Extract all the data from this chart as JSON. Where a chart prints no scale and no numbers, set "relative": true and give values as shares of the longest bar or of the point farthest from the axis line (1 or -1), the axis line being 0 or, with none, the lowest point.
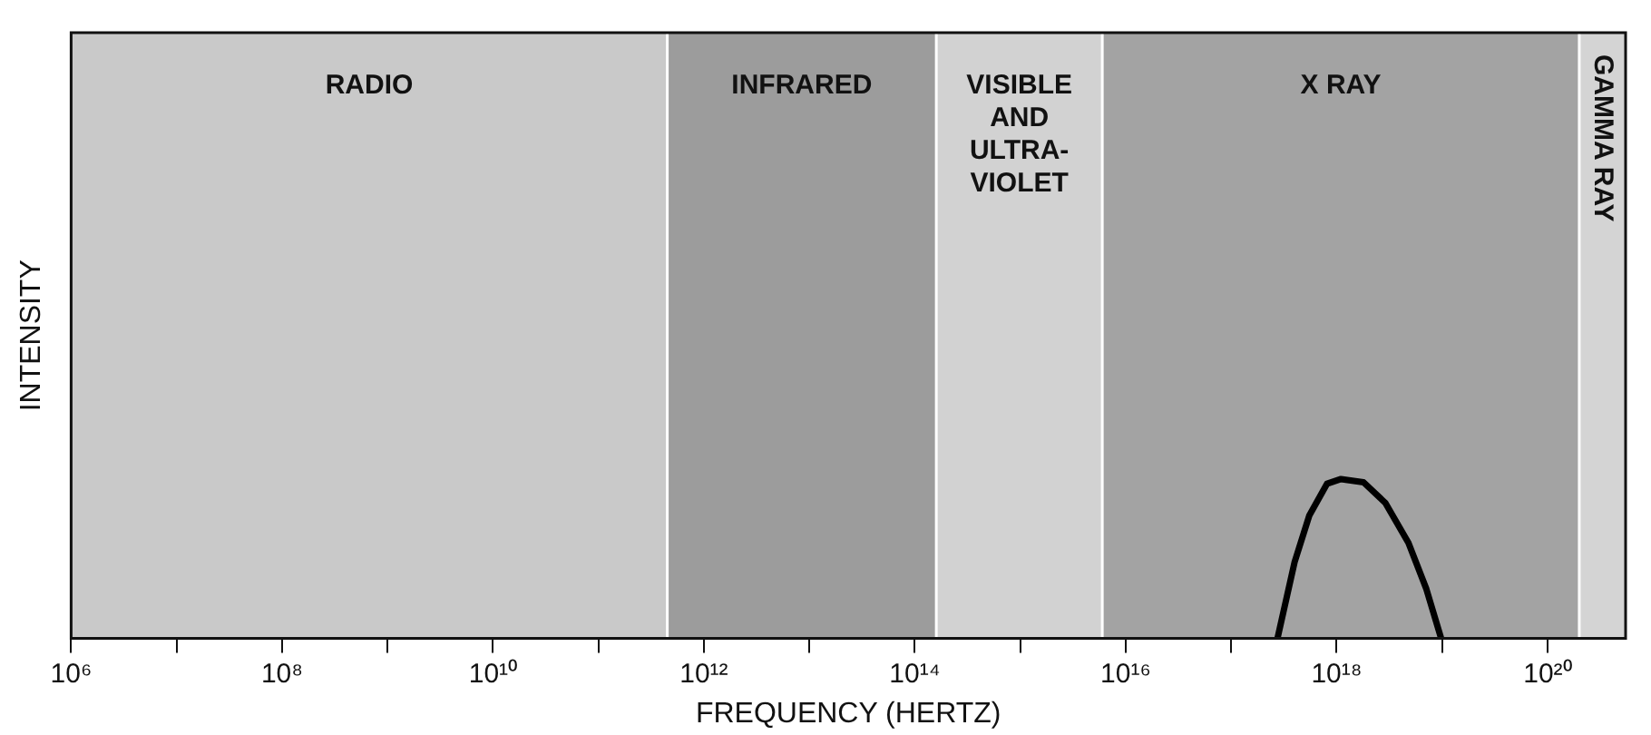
{
  "chart_data": {
    "type": "line",
    "xlabel": "FREQUENCY (HERTZ)",
    "ylabel": "INTENSITY",
    "relative": true,
    "log": "x",
    "legend": false,
    "marker": "none",
    "line_style": "solid",
    "xlim": [
      1000000.0,
      5.5e+20
    ],
    "xticks": [
      {
        "value": 1000000.0,
        "label": "10⁶"
      },
      {
        "value": 10000000.0,
        "label": null
      },
      {
        "value": 100000000.0,
        "label": "10⁸"
      },
      {
        "value": 1000000000.0,
        "label": null
      },
      {
        "value": 10000000000.0,
        "label": "10¹⁰"
      },
      {
        "value": 100000000000.0,
        "label": null
      },
      {
        "value": 1000000000000.0,
        "label": "10¹²"
      },
      {
        "value": 10000000000000.0,
        "label": null
      },
      {
        "value": 100000000000000.0,
        "label": "10¹⁴"
      },
      {
        "value": 1000000000000000.0,
        "label": null
      },
      {
        "value": 1e+16,
        "label": "10¹⁶"
      },
      {
        "value": 1e+17,
        "label": null
      },
      {
        "value": 1e+18,
        "label": "10¹⁸"
      },
      {
        "value": 1e+19,
        "label": null
      },
      {
        "value": 1e+20,
        "label": "10²⁰"
      }
    ],
    "x": [
      2.75e+17,
      4e+17,
      5.5e+17,
      8.1e+17,
      1.1e+18,
      1.8e+18,
      2.9e+18,
      4.8e+18,
      7.1e+18,
      9.8e+18
    ],
    "series": [
      {
        "color": "#000000",
        "values": [
          0,
          0.48,
          0.77,
          0.97,
          1,
          0.98,
          0.85,
          0.6,
          0.31,
          0
        ]
      }
    ],
    "bands": [
      {
        "axis": "x",
        "from": 1000000.0,
        "to": 450000000000.0,
        "label": "RADIO",
        "color": "#c9c9c9"
      },
      {
        "axis": "x",
        "from": 450000000000.0,
        "to": 160000000000000.0,
        "label": "INFRARED",
        "color": "#9c9c9c"
      },
      {
        "axis": "x",
        "from": 160000000000000.0,
        "to": 6000000000000000.0,
        "label": "VISIBLE AND ULTRA-VIOLET",
        "color": "#d2d2d2"
      },
      {
        "axis": "x",
        "from": 6000000000000000.0,
        "to": 2e+20,
        "label": "X RAY",
        "color": "#a3a3a3"
      },
      {
        "axis": "x",
        "from": 2e+20,
        "to": 5.5e+20,
        "label": "GAMMA RAY",
        "color": "#d4d4d4"
      }
    ]
  }
}
